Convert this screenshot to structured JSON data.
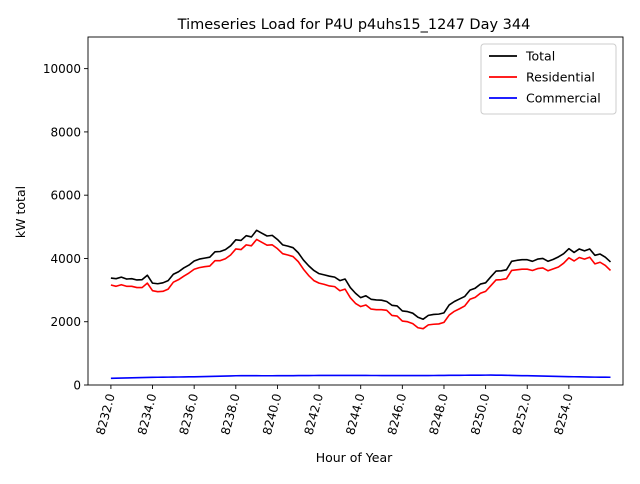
{
  "chart_data": {
    "type": "line",
    "title": "Timeseries Load for P4U p4uhs15_1247  Day 344",
    "xlabel": "Hour of Year",
    "ylabel": "kW total",
    "xlim": [
      8230.9,
      8256.6
    ],
    "ylim": [
      0,
      11000
    ],
    "x_ticks": [
      8232,
      8234,
      8236,
      8238,
      8240,
      8242,
      8244,
      8246,
      8248,
      8250,
      8252,
      8254
    ],
    "x_tick_labels": [
      "8232.0",
      "8234.0",
      "8236.0",
      "8238.0",
      "8240.0",
      "8242.0",
      "8244.0",
      "8246.0",
      "8248.0",
      "8250.0",
      "8252.0",
      "8254.0"
    ],
    "y_ticks": [
      0,
      2000,
      4000,
      6000,
      8000,
      10000
    ],
    "y_tick_labels": [
      "0",
      "2000",
      "4000",
      "6000",
      "8000",
      "10000"
    ],
    "grid": false,
    "legend_position": "top-right",
    "x_start": 8232,
    "x_step": 0.25,
    "series": [
      {
        "name": "Total",
        "color": "#000000",
        "values": [
          3380,
          3360,
          3410,
          3350,
          3360,
          3320,
          3330,
          3470,
          3220,
          3200,
          3230,
          3300,
          3500,
          3580,
          3700,
          3790,
          3920,
          3980,
          4010,
          4040,
          4210,
          4220,
          4280,
          4400,
          4590,
          4570,
          4720,
          4680,
          4890,
          4800,
          4710,
          4730,
          4600,
          4430,
          4390,
          4340,
          4180,
          3950,
          3770,
          3620,
          3520,
          3480,
          3440,
          3410,
          3300,
          3350,
          3080,
          2900,
          2760,
          2820,
          2710,
          2690,
          2680,
          2640,
          2520,
          2500,
          2340,
          2320,
          2270,
          2140,
          2080,
          2200,
          2230,
          2240,
          2280,
          2530,
          2640,
          2720,
          2800,
          3000,
          3060,
          3190,
          3230,
          3420,
          3600,
          3610,
          3640,
          3910,
          3940,
          3960,
          3960,
          3910,
          3980,
          4000,
          3910,
          3970,
          4050,
          4150,
          4310,
          4190,
          4300,
          4240,
          4300,
          4100,
          4140,
          4040,
          3890
        ]
      },
      {
        "name": "Residential",
        "color": "#ff0000",
        "values": [
          3160,
          3120,
          3170,
          3120,
          3120,
          3080,
          3080,
          3220,
          2980,
          2950,
          2960,
          3030,
          3250,
          3330,
          3440,
          3540,
          3660,
          3710,
          3740,
          3760,
          3930,
          3930,
          3990,
          4110,
          4300,
          4280,
          4430,
          4400,
          4600,
          4510,
          4420,
          4430,
          4310,
          4150,
          4110,
          4060,
          3900,
          3660,
          3460,
          3300,
          3220,
          3180,
          3130,
          3110,
          2980,
          3030,
          2760,
          2580,
          2480,
          2530,
          2400,
          2380,
          2380,
          2360,
          2200,
          2180,
          2020,
          2000,
          1940,
          1810,
          1780,
          1900,
          1920,
          1930,
          1980,
          2210,
          2330,
          2410,
          2500,
          2710,
          2770,
          2900,
          2960,
          3140,
          3320,
          3330,
          3360,
          3620,
          3640,
          3660,
          3660,
          3620,
          3680,
          3700,
          3610,
          3670,
          3730,
          3850,
          4020,
          3920,
          4030,
          3980,
          4040,
          3830,
          3880,
          3780,
          3620
        ]
      },
      {
        "name": "Commercial",
        "color": "#0000ff",
        "values": [
          210,
          215,
          218,
          222,
          226,
          230,
          234,
          238,
          242,
          245,
          247,
          249,
          251,
          253,
          255,
          258,
          260,
          263,
          266,
          270,
          274,
          279,
          284,
          288,
          292,
          294,
          295,
          294,
          293,
          292,
          292,
          292,
          293,
          294,
          295,
          296,
          297,
          298,
          299,
          300,
          301,
          302,
          303,
          303,
          303,
          303,
          303,
          302,
          302,
          301,
          300,
          300,
          299,
          299,
          299,
          299,
          299,
          298,
          298,
          298,
          298,
          299,
          300,
          302,
          303,
          305,
          306,
          307,
          308,
          309,
          310,
          311,
          312,
          313,
          311,
          309,
          306,
          303,
          299,
          296,
          294,
          291,
          288,
          284,
          280,
          276,
          272,
          268,
          264,
          261,
          258,
          255,
          252,
          249,
          247,
          246,
          245
        ]
      }
    ]
  }
}
